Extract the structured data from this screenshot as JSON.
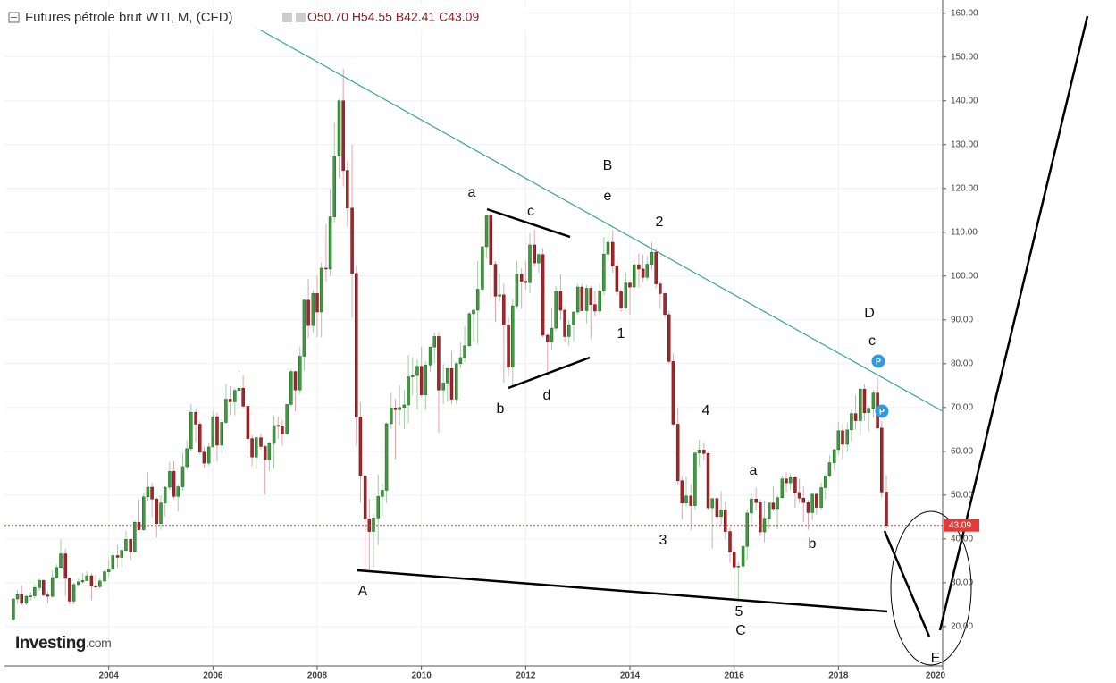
{
  "chart_data": {
    "type": "candlestick",
    "title": "Futures pétrole brut WTI, M, (CFD)",
    "ohlc_text": "O50.70 H54.55 B42.41 C43.09",
    "logo": "Investing",
    "logo_suffix": ".com",
    "up_color": "#3f9b3f",
    "down_color": "#a3262a",
    "trend_color": "#3aa68f",
    "grid": true,
    "xlim": [
      2002.0,
      2020.0
    ],
    "xticks": [
      2004,
      2006,
      2008,
      2010,
      2012,
      2014,
      2016,
      2018,
      2020
    ],
    "ylim": [
      11,
      163
    ],
    "yticks": [
      {
        "value": 20,
        "label": "20.00"
      },
      {
        "value": 30,
        "label": "30.00"
      },
      {
        "value": 40,
        "label": "40.00"
      },
      {
        "value": 50,
        "label": "50.00"
      },
      {
        "value": 60,
        "label": "60.00"
      },
      {
        "value": 70,
        "label": "70.00"
      },
      {
        "value": 80,
        "label": "80.00"
      },
      {
        "value": 90,
        "label": "90.00"
      },
      {
        "value": 100,
        "label": "100.00"
      },
      {
        "value": 110,
        "label": "110.00"
      },
      {
        "value": 120,
        "label": "120.00"
      },
      {
        "value": 130,
        "label": "130.00"
      },
      {
        "value": 140,
        "label": "140.00"
      },
      {
        "value": 150,
        "label": "150.00"
      },
      {
        "value": 160,
        "label": "160.00"
      }
    ],
    "last_price": 43.09,
    "annotations": [
      "A",
      "B",
      "e",
      "a",
      "c",
      "2",
      "b",
      "d",
      "1",
      "4",
      "3",
      "5",
      "C",
      "D",
      "c",
      "a",
      "b",
      "E",
      "P",
      "P"
    ],
    "x": [
      2002.17,
      2002.25,
      2002.33,
      2002.42,
      2002.5,
      2002.58,
      2002.67,
      2002.75,
      2002.83,
      2002.92,
      2003,
      2003.08,
      2003.17,
      2003.25,
      2003.33,
      2003.42,
      2003.5,
      2003.58,
      2003.67,
      2003.75,
      2003.83,
      2003.92,
      2004,
      2004.08,
      2004.17,
      2004.25,
      2004.33,
      2004.42,
      2004.5,
      2004.58,
      2004.67,
      2004.75,
      2004.83,
      2004.92,
      2005,
      2005.08,
      2005.17,
      2005.25,
      2005.33,
      2005.42,
      2005.5,
      2005.58,
      2005.67,
      2005.75,
      2005.83,
      2005.92,
      2006,
      2006.08,
      2006.17,
      2006.25,
      2006.33,
      2006.42,
      2006.5,
      2006.58,
      2006.67,
      2006.75,
      2006.83,
      2006.92,
      2007,
      2007.08,
      2007.17,
      2007.25,
      2007.33,
      2007.42,
      2007.5,
      2007.58,
      2007.67,
      2007.75,
      2007.83,
      2007.92,
      2008,
      2008.08,
      2008.17,
      2008.25,
      2008.33,
      2008.42,
      2008.5,
      2008.58,
      2008.67,
      2008.75,
      2008.83,
      2008.92,
      2009,
      2009.08,
      2009.17,
      2009.25,
      2009.33,
      2009.42,
      2009.5,
      2009.58,
      2009.67,
      2009.75,
      2009.83,
      2009.92,
      2010,
      2010.08,
      2010.17,
      2010.25,
      2010.33,
      2010.42,
      2010.5,
      2010.58,
      2010.67,
      2010.75,
      2010.83,
      2010.92,
      2011,
      2011.08,
      2011.17,
      2011.25,
      2011.33,
      2011.42,
      2011.5,
      2011.58,
      2011.67,
      2011.75,
      2011.83,
      2011.92,
      2012,
      2012.08,
      2012.17,
      2012.25,
      2012.33,
      2012.42,
      2012.5,
      2012.58,
      2012.67,
      2012.75,
      2012.83,
      2012.92,
      2013,
      2013.08,
      2013.17,
      2013.25,
      2013.33,
      2013.42,
      2013.5,
      2013.58,
      2013.67,
      2013.75,
      2013.83,
      2013.92,
      2014,
      2014.08,
      2014.17,
      2014.25,
      2014.33,
      2014.42,
      2014.5,
      2014.58,
      2014.67,
      2014.75,
      2014.83,
      2014.92,
      2015,
      2015.08,
      2015.17,
      2015.25,
      2015.33,
      2015.42,
      2015.5,
      2015.58,
      2015.67,
      2015.75,
      2015.83,
      2015.92,
      2016,
      2016.08,
      2016.17,
      2016.25,
      2016.33,
      2016.42,
      2016.5,
      2016.58,
      2016.67,
      2016.75,
      2016.83,
      2016.92,
      2017,
      2017.08,
      2017.17,
      2017.25,
      2017.33,
      2017.42,
      2017.5,
      2017.58,
      2017.67,
      2017.75,
      2017.83,
      2017.92,
      2018,
      2018.08,
      2018.17,
      2018.25,
      2018.33,
      2018.42,
      2018.5,
      2018.58,
      2018.67,
      2018.75,
      2018.83,
      2018.92
    ],
    "ohlc": [
      [
        21.7,
        26.5,
        21.2,
        26.3
      ],
      [
        26.3,
        28.4,
        25.2,
        27.3
      ],
      [
        27.3,
        29.4,
        24.8,
        25.3
      ],
      [
        25.3,
        27.2,
        24.9,
        26.9
      ],
      [
        26.9,
        27.9,
        25.9,
        27.0
      ],
      [
        27.0,
        29.6,
        26.4,
        28.9
      ],
      [
        28.9,
        31.0,
        28.2,
        30.5
      ],
      [
        30.5,
        30.8,
        26.8,
        27.2
      ],
      [
        27.2,
        28.0,
        25.3,
        26.9
      ],
      [
        26.9,
        32.7,
        26.6,
        31.2
      ],
      [
        31.2,
        34.2,
        30.9,
        33.5
      ],
      [
        33.5,
        39.9,
        33.0,
        36.6
      ],
      [
        36.6,
        37.8,
        27.0,
        31.0
      ],
      [
        31.0,
        31.3,
        25.0,
        25.8
      ],
      [
        25.8,
        30.0,
        25.1,
        29.6
      ],
      [
        29.6,
        31.0,
        29.0,
        30.2
      ],
      [
        30.2,
        32.2,
        29.8,
        30.5
      ],
      [
        30.5,
        32.6,
        30.3,
        31.6
      ],
      [
        31.6,
        32.2,
        26.0,
        29.2
      ],
      [
        29.2,
        31.9,
        28.8,
        29.1
      ],
      [
        29.1,
        31.1,
        28.6,
        30.4
      ],
      [
        30.4,
        33.0,
        30.1,
        32.5
      ],
      [
        32.5,
        35.4,
        31.4,
        33.1
      ],
      [
        33.1,
        37.0,
        32.6,
        36.2
      ],
      [
        36.2,
        38.6,
        33.4,
        35.8
      ],
      [
        35.8,
        38.0,
        33.5,
        37.4
      ],
      [
        37.4,
        41.9,
        37.1,
        39.9
      ],
      [
        39.9,
        40.1,
        35.2,
        37.1
      ],
      [
        37.1,
        44.2,
        36.9,
        43.8
      ],
      [
        43.8,
        49.0,
        42.2,
        42.1
      ],
      [
        42.1,
        50.5,
        41.8,
        49.6
      ],
      [
        49.6,
        55.3,
        48.7,
        51.8
      ],
      [
        51.8,
        52.8,
        45.0,
        49.1
      ],
      [
        49.1,
        49.6,
        40.3,
        43.5
      ],
      [
        43.5,
        49.9,
        42.1,
        48.2
      ],
      [
        48.2,
        52.0,
        45.2,
        51.8
      ],
      [
        51.8,
        57.6,
        51.2,
        55.4
      ],
      [
        55.4,
        57.7,
        49.1,
        49.7
      ],
      [
        49.7,
        52.5,
        46.2,
        51.9
      ],
      [
        51.9,
        59.7,
        51.0,
        56.5
      ],
      [
        56.5,
        62.5,
        55.9,
        60.6
      ],
      [
        60.6,
        70.8,
        60.0,
        68.9
      ],
      [
        68.9,
        69.8,
        62.1,
        66.2
      ],
      [
        66.2,
        66.9,
        59.3,
        59.8
      ],
      [
        59.8,
        61.1,
        56.3,
        57.3
      ],
      [
        57.3,
        61.9,
        56.7,
        61.0
      ],
      [
        61.0,
        69.2,
        60.9,
        67.9
      ],
      [
        67.9,
        68.8,
        57.6,
        61.4
      ],
      [
        61.4,
        67.3,
        59.5,
        66.6
      ],
      [
        66.6,
        75.4,
        66.3,
        71.9
      ],
      [
        71.9,
        74.9,
        68.2,
        71.3
      ],
      [
        71.3,
        74.4,
        68.2,
        73.9
      ],
      [
        73.9,
        78.4,
        72.1,
        74.4
      ],
      [
        74.4,
        77.4,
        69.8,
        70.3
      ],
      [
        70.3,
        70.9,
        59.5,
        62.9
      ],
      [
        62.9,
        63.7,
        56.6,
        58.7
      ],
      [
        58.7,
        63.2,
        55.9,
        63.1
      ],
      [
        63.1,
        64.0,
        60.4,
        61.1
      ],
      [
        61.1,
        61.5,
        50.2,
        58.1
      ],
      [
        58.1,
        62.2,
        55.5,
        61.8
      ],
      [
        61.8,
        68.1,
        56.0,
        65.9
      ],
      [
        65.9,
        67.9,
        62.8,
        65.7
      ],
      [
        65.7,
        67.2,
        61.3,
        64.0
      ],
      [
        64.0,
        70.7,
        63.8,
        70.7
      ],
      [
        70.7,
        78.8,
        70.3,
        78.2
      ],
      [
        78.2,
        78.3,
        69.1,
        74.0
      ],
      [
        74.0,
        83.9,
        73.0,
        81.7
      ],
      [
        81.7,
        94.7,
        78.4,
        94.5
      ],
      [
        94.5,
        99.3,
        85.8,
        88.7
      ],
      [
        88.7,
        96.8,
        87.0,
        96.0
      ],
      [
        96.0,
        100.1,
        86.1,
        91.8
      ],
      [
        91.8,
        103.1,
        86.0,
        101.8
      ],
      [
        101.8,
        111.8,
        98.7,
        101.6
      ],
      [
        101.6,
        119.9,
        100.0,
        113.5
      ],
      [
        113.5,
        135.1,
        112.2,
        127.4
      ],
      [
        127.4,
        140.4,
        122.5,
        140.0
      ],
      [
        140.0,
        147.3,
        120.4,
        124.1
      ],
      [
        124.1,
        126.2,
        111.3,
        115.5
      ],
      [
        115.5,
        130.0,
        90.5,
        100.6
      ],
      [
        100.6,
        102.3,
        61.3,
        67.8
      ],
      [
        67.8,
        71.2,
        48.3,
        54.4
      ],
      [
        54.4,
        54.6,
        32.4,
        44.6
      ],
      [
        44.6,
        49.2,
        32.7,
        41.7
      ],
      [
        41.7,
        45.7,
        33.6,
        44.8
      ],
      [
        44.8,
        54.7,
        38.6,
        49.7
      ],
      [
        49.7,
        52.7,
        45.2,
        51.1
      ],
      [
        51.1,
        66.6,
        48.2,
        66.3
      ],
      [
        66.3,
        73.4,
        65.0,
        69.9
      ],
      [
        69.9,
        71.9,
        58.3,
        69.5
      ],
      [
        69.5,
        75.0,
        66.0,
        70.0
      ],
      [
        70.0,
        74.0,
        65.1,
        70.6
      ],
      [
        70.6,
        82.0,
        66.5,
        77.0
      ],
      [
        77.0,
        81.5,
        72.8,
        77.3
      ],
      [
        77.3,
        81.0,
        69.5,
        79.4
      ],
      [
        79.4,
        83.9,
        72.4,
        72.9
      ],
      [
        72.9,
        80.5,
        69.5,
        79.7
      ],
      [
        79.7,
        83.9,
        78.1,
        83.8
      ],
      [
        83.8,
        87.1,
        80.1,
        86.2
      ],
      [
        86.2,
        87.2,
        64.2,
        74.0
      ],
      [
        74.0,
        79.9,
        70.8,
        75.6
      ],
      [
        75.6,
        79.0,
        71.3,
        78.9
      ],
      [
        78.9,
        82.9,
        70.8,
        71.9
      ],
      [
        71.9,
        80.4,
        70.8,
        80.0
      ],
      [
        80.0,
        84.9,
        79.0,
        81.4
      ],
      [
        81.4,
        88.6,
        80.3,
        84.1
      ],
      [
        84.1,
        91.9,
        83.8,
        91.4
      ],
      [
        91.4,
        92.6,
        85.1,
        92.2
      ],
      [
        92.2,
        103.4,
        84.4,
        97.0
      ],
      [
        97.0,
        106.9,
        96.5,
        106.7
      ],
      [
        106.7,
        114.0,
        104.0,
        113.9
      ],
      [
        113.9,
        114.8,
        94.6,
        102.7
      ],
      [
        102.7,
        103.4,
        89.6,
        95.4
      ],
      [
        95.4,
        100.6,
        94.2,
        95.7
      ],
      [
        95.7,
        98.3,
        75.7,
        88.8
      ],
      [
        88.8,
        90.5,
        77.1,
        79.2
      ],
      [
        79.2,
        94.7,
        74.9,
        93.2
      ],
      [
        93.2,
        103.4,
        92.5,
        100.4
      ],
      [
        100.4,
        101.8,
        92.5,
        98.8
      ],
      [
        98.8,
        103.5,
        96.9,
        98.5
      ],
      [
        98.5,
        109.8,
        96.1,
        107.1
      ],
      [
        107.1,
        110.6,
        102.1,
        103.0
      ],
      [
        103.0,
        105.3,
        100.7,
        104.9
      ],
      [
        104.9,
        106.4,
        86.0,
        86.5
      ],
      [
        86.5,
        87.0,
        77.3,
        85.0
      ],
      [
        85.0,
        92.9,
        83.1,
        88.1
      ],
      [
        88.1,
        97.8,
        87.5,
        96.5
      ],
      [
        96.5,
        100.4,
        90.0,
        92.2
      ],
      [
        92.2,
        93.0,
        85.0,
        86.2
      ],
      [
        86.2,
        90.0,
        84.1,
        88.9
      ],
      [
        88.9,
        91.9,
        85.1,
        91.8
      ],
      [
        91.8,
        98.2,
        91.2,
        97.5
      ],
      [
        97.5,
        98.2,
        92.0,
        92.1
      ],
      [
        92.1,
        97.9,
        89.2,
        97.2
      ],
      [
        97.2,
        97.8,
        85.6,
        93.5
      ],
      [
        93.5,
        96.6,
        90.8,
        92.0
      ],
      [
        92.0,
        98.2,
        91.1,
        96.6
      ],
      [
        96.6,
        108.9,
        95.6,
        105.0
      ],
      [
        105.0,
        112.2,
        103.3,
        107.7
      ],
      [
        107.7,
        110.5,
        100.7,
        102.3
      ],
      [
        102.3,
        104.1,
        95.6,
        96.4
      ],
      [
        96.4,
        96.9,
        91.8,
        92.7
      ],
      [
        92.7,
        100.8,
        92.3,
        98.4
      ],
      [
        98.4,
        98.9,
        91.2,
        97.5
      ],
      [
        97.5,
        104.0,
        96.7,
        102.6
      ],
      [
        102.6,
        105.2,
        97.4,
        101.6
      ],
      [
        101.6,
        104.9,
        98.6,
        99.7
      ],
      [
        99.7,
        104.6,
        99.0,
        102.7
      ],
      [
        102.7,
        107.7,
        101.4,
        105.4
      ],
      [
        105.4,
        106.3,
        97.2,
        98.2
      ],
      [
        98.2,
        98.7,
        92.5,
        96.0
      ],
      [
        96.0,
        96.3,
        90.4,
        91.2
      ],
      [
        91.2,
        92.0,
        80.0,
        80.5
      ],
      [
        80.5,
        82.3,
        65.7,
        66.2
      ],
      [
        66.2,
        69.9,
        52.4,
        53.3
      ],
      [
        53.3,
        54.3,
        44.4,
        48.2
      ],
      [
        48.2,
        54.2,
        47.4,
        49.8
      ],
      [
        49.8,
        52.5,
        42.0,
        47.6
      ],
      [
        47.6,
        59.9,
        46.7,
        59.6
      ],
      [
        59.6,
        62.6,
        56.5,
        60.3
      ],
      [
        60.3,
        61.9,
        57.9,
        59.5
      ],
      [
        59.5,
        59.9,
        46.7,
        47.1
      ],
      [
        47.1,
        49.3,
        37.8,
        49.2
      ],
      [
        49.2,
        49.3,
        43.2,
        45.1
      ],
      [
        45.1,
        50.9,
        43.0,
        46.6
      ],
      [
        46.6,
        48.4,
        39.9,
        41.7
      ],
      [
        41.7,
        42.6,
        34.5,
        37.0
      ],
      [
        37.0,
        38.4,
        27.6,
        33.6
      ],
      [
        33.6,
        34.7,
        26.1,
        33.8
      ],
      [
        33.8,
        41.9,
        32.4,
        38.3
      ],
      [
        38.3,
        46.8,
        35.2,
        45.9
      ],
      [
        45.9,
        50.2,
        43.0,
        49.1
      ],
      [
        49.1,
        51.7,
        46.7,
        48.3
      ],
      [
        48.3,
        49.1,
        40.6,
        41.6
      ],
      [
        41.6,
        48.8,
        39.2,
        44.7
      ],
      [
        44.7,
        48.2,
        42.3,
        48.2
      ],
      [
        48.2,
        51.9,
        46.3,
        46.9
      ],
      [
        46.9,
        49.9,
        42.2,
        49.4
      ],
      [
        49.4,
        54.5,
        49.3,
        53.7
      ],
      [
        53.7,
        55.2,
        50.7,
        52.8
      ],
      [
        52.8,
        54.9,
        51.2,
        54.0
      ],
      [
        54.0,
        54.5,
        47.1,
        50.6
      ],
      [
        50.6,
        53.8,
        48.2,
        49.3
      ],
      [
        49.3,
        52.0,
        43.8,
        48.3
      ],
      [
        48.3,
        48.9,
        42.1,
        46.0
      ],
      [
        46.0,
        50.4,
        44.3,
        50.2
      ],
      [
        50.2,
        50.4,
        45.6,
        47.2
      ],
      [
        47.2,
        52.9,
        46.6,
        51.7
      ],
      [
        51.7,
        54.8,
        49.1,
        54.4
      ],
      [
        54.4,
        59.1,
        54.0,
        57.4
      ],
      [
        57.4,
        60.5,
        55.8,
        60.4
      ],
      [
        60.4,
        66.7,
        59.1,
        64.7
      ],
      [
        64.7,
        66.4,
        58.1,
        61.6
      ],
      [
        61.6,
        66.6,
        59.9,
        64.9
      ],
      [
        64.9,
        69.6,
        62.3,
        68.6
      ],
      [
        68.6,
        72.9,
        65.0,
        67.0
      ],
      [
        67.0,
        74.5,
        63.6,
        74.2
      ],
      [
        74.2,
        75.3,
        67.0,
        68.8
      ],
      [
        68.8,
        70.4,
        64.4,
        69.8
      ],
      [
        69.8,
        74.0,
        67.7,
        73.3
      ],
      [
        73.3,
        76.9,
        64.9,
        65.3
      ],
      [
        65.3,
        67.0,
        49.4,
        50.7
      ],
      [
        50.7,
        54.55,
        42.41,
        43.09
      ]
    ]
  }
}
